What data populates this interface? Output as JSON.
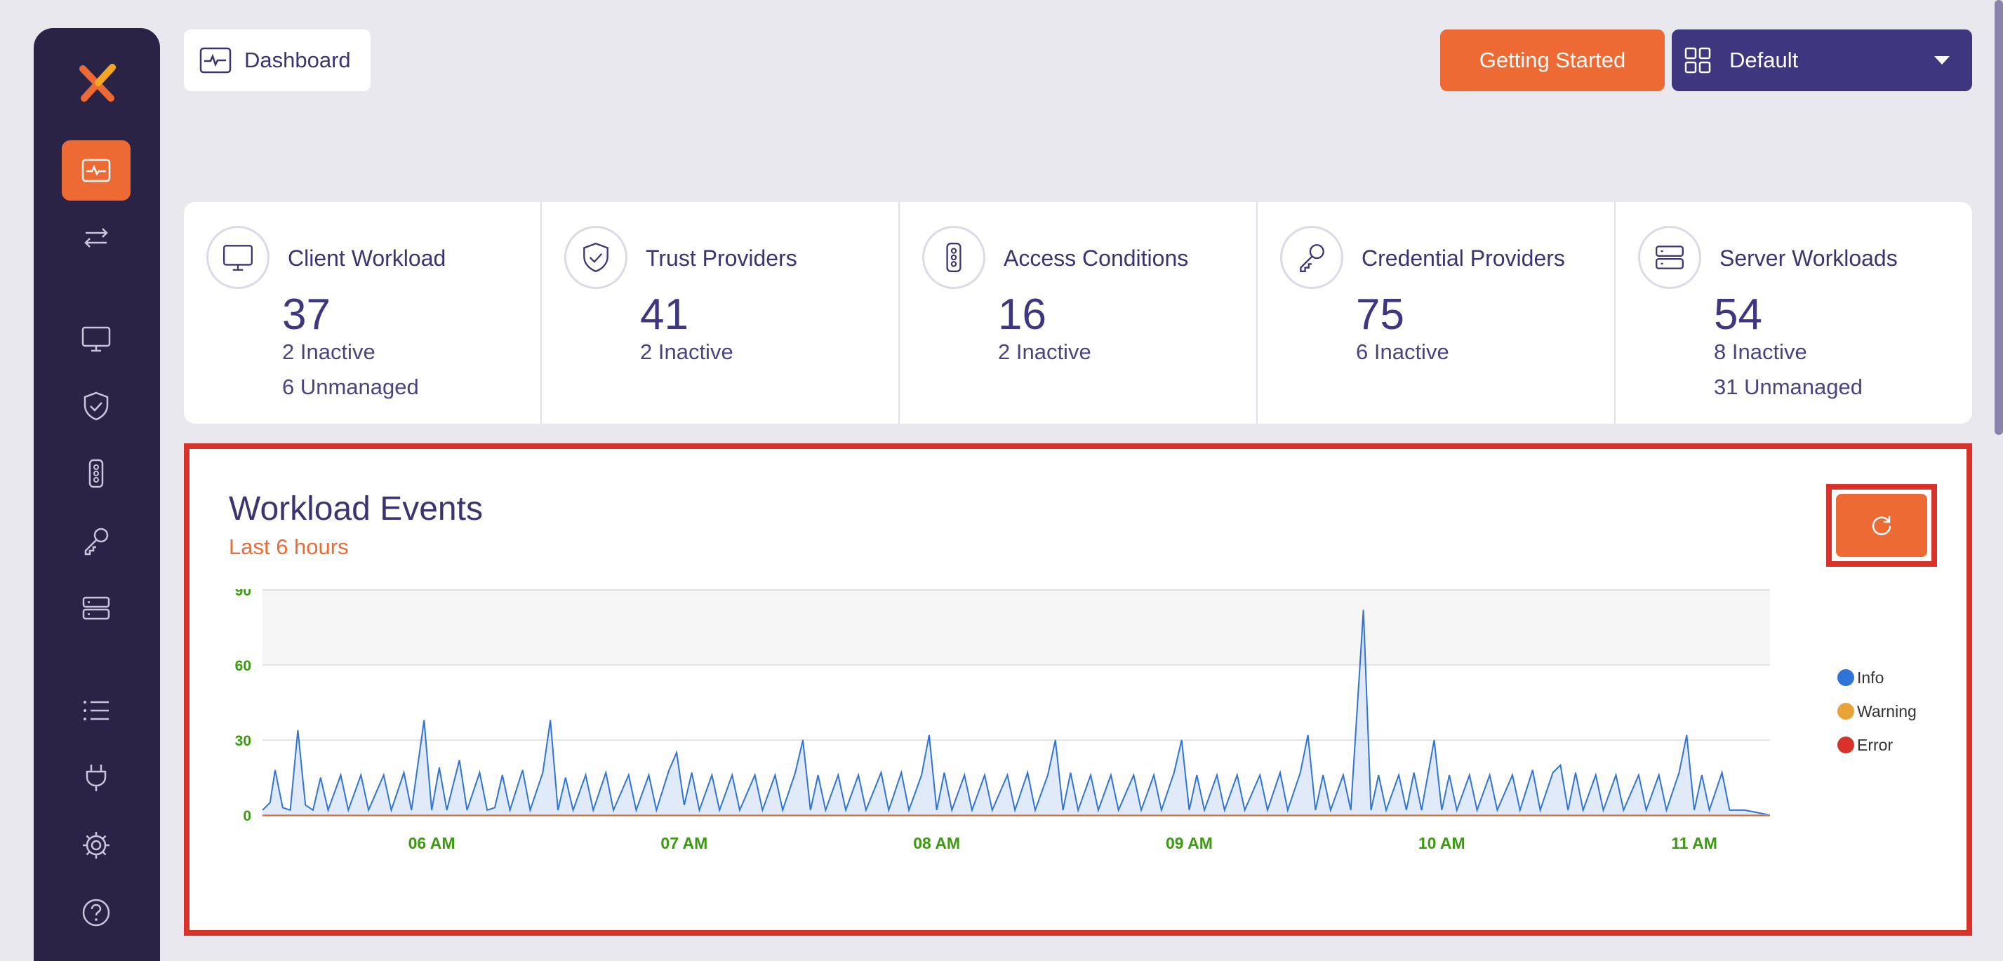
{
  "header": {
    "breadcrumb": "Dashboard",
    "getting_started": "Getting Started",
    "workspace_select": "Default"
  },
  "sidebar": {
    "items": [
      {
        "name": "dashboard",
        "icon": "dashboard-icon",
        "active": true
      },
      {
        "name": "flows",
        "icon": "arrows-icon"
      },
      {
        "name": "client-workloads",
        "icon": "monitor-icon"
      },
      {
        "name": "trust-providers",
        "icon": "shield-icon"
      },
      {
        "name": "access-conditions",
        "icon": "traffic-light-icon"
      },
      {
        "name": "credential-providers",
        "icon": "key-icon"
      },
      {
        "name": "server-workloads",
        "icon": "server-icon"
      },
      {
        "name": "logs",
        "icon": "list-icon"
      },
      {
        "name": "integrations",
        "icon": "plug-icon"
      },
      {
        "name": "settings",
        "icon": "gear-icon"
      },
      {
        "name": "help",
        "icon": "help-icon"
      }
    ]
  },
  "stats": [
    {
      "label": "Client Workload",
      "value": "37",
      "sub1": "2 Inactive",
      "sub2": "6 Unmanaged",
      "icon": "monitor-icon"
    },
    {
      "label": "Trust Providers",
      "value": "41",
      "sub1": "2 Inactive",
      "sub2": "",
      "icon": "shield-icon"
    },
    {
      "label": "Access Conditions",
      "value": "16",
      "sub1": "2 Inactive",
      "sub2": "",
      "icon": "traffic-light-icon"
    },
    {
      "label": "Credential Providers",
      "value": "75",
      "sub1": "6 Inactive",
      "sub2": "",
      "icon": "key-icon"
    },
    {
      "label": "Server Workloads",
      "value": "54",
      "sub1": "8 Inactive",
      "sub2": "31 Unmanaged",
      "icon": "server-icon"
    }
  ],
  "events": {
    "title": "Workload Events",
    "subtitle": "Last 6 hours"
  },
  "colors": {
    "accent": "#ee6a35",
    "sidebar": "#2a2346",
    "primary": "#3f3680",
    "info": "#2f74d6",
    "warning": "#e8a23a",
    "error": "#d8322a",
    "tick": "#3a9a10"
  },
  "chart_data": {
    "type": "area",
    "xlabel": "",
    "ylabel": "",
    "ylim": [
      0,
      90
    ],
    "yticks": [
      "0",
      "30",
      "60",
      "90"
    ],
    "xticks": [
      "06 AM",
      "07 AM",
      "08 AM",
      "09 AM",
      "10 AM",
      "11 AM"
    ],
    "xrange_hours": [
      5.33,
      11.3
    ],
    "legend": [
      "Info",
      "Warning",
      "Error"
    ],
    "legend_position": "right",
    "series": [
      {
        "name": "Info",
        "color": "#2f74d6",
        "points": [
          [
            5.33,
            2
          ],
          [
            5.36,
            5
          ],
          [
            5.38,
            18
          ],
          [
            5.41,
            3
          ],
          [
            5.44,
            2
          ],
          [
            5.47,
            34
          ],
          [
            5.5,
            4
          ],
          [
            5.53,
            2
          ],
          [
            5.56,
            15
          ],
          [
            5.59,
            2
          ],
          [
            5.64,
            16
          ],
          [
            5.67,
            2
          ],
          [
            5.72,
            16
          ],
          [
            5.75,
            2
          ],
          [
            5.81,
            16
          ],
          [
            5.84,
            2
          ],
          [
            5.89,
            17
          ],
          [
            5.92,
            2
          ],
          [
            5.97,
            38
          ],
          [
            6.0,
            2
          ],
          [
            6.03,
            19
          ],
          [
            6.06,
            2
          ],
          [
            6.11,
            22
          ],
          [
            6.14,
            2
          ],
          [
            6.19,
            17
          ],
          [
            6.22,
            2
          ],
          [
            6.25,
            3
          ],
          [
            6.28,
            16
          ],
          [
            6.31,
            2
          ],
          [
            6.36,
            18
          ],
          [
            6.39,
            2
          ],
          [
            6.44,
            17
          ],
          [
            6.47,
            38
          ],
          [
            6.5,
            2
          ],
          [
            6.53,
            15
          ],
          [
            6.56,
            2
          ],
          [
            6.61,
            16
          ],
          [
            6.64,
            2
          ],
          [
            6.69,
            17
          ],
          [
            6.72,
            2
          ],
          [
            6.78,
            16
          ],
          [
            6.81,
            2
          ],
          [
            6.86,
            16
          ],
          [
            6.89,
            2
          ],
          [
            6.94,
            18
          ],
          [
            6.97,
            25
          ],
          [
            7.0,
            4
          ],
          [
            7.03,
            17
          ],
          [
            7.06,
            2
          ],
          [
            7.11,
            16
          ],
          [
            7.14,
            2
          ],
          [
            7.19,
            16
          ],
          [
            7.22,
            2
          ],
          [
            7.28,
            16
          ],
          [
            7.31,
            2
          ],
          [
            7.36,
            16
          ],
          [
            7.39,
            2
          ],
          [
            7.44,
            17
          ],
          [
            7.47,
            30
          ],
          [
            7.5,
            2
          ],
          [
            7.53,
            16
          ],
          [
            7.56,
            2
          ],
          [
            7.61,
            16
          ],
          [
            7.64,
            2
          ],
          [
            7.69,
            16
          ],
          [
            7.72,
            2
          ],
          [
            7.78,
            17
          ],
          [
            7.81,
            2
          ],
          [
            7.86,
            17
          ],
          [
            7.89,
            2
          ],
          [
            7.94,
            16
          ],
          [
            7.97,
            32
          ],
          [
            8.0,
            2
          ],
          [
            8.03,
            17
          ],
          [
            8.06,
            2
          ],
          [
            8.11,
            16
          ],
          [
            8.14,
            2
          ],
          [
            8.19,
            16
          ],
          [
            8.22,
            2
          ],
          [
            8.28,
            16
          ],
          [
            8.31,
            2
          ],
          [
            8.36,
            17
          ],
          [
            8.39,
            2
          ],
          [
            8.44,
            16
          ],
          [
            8.47,
            30
          ],
          [
            8.5,
            2
          ],
          [
            8.53,
            17
          ],
          [
            8.56,
            2
          ],
          [
            8.61,
            16
          ],
          [
            8.64,
            2
          ],
          [
            8.69,
            16
          ],
          [
            8.72,
            2
          ],
          [
            8.78,
            16
          ],
          [
            8.81,
            2
          ],
          [
            8.86,
            16
          ],
          [
            8.89,
            2
          ],
          [
            8.94,
            17
          ],
          [
            8.97,
            30
          ],
          [
            9.0,
            2
          ],
          [
            9.03,
            16
          ],
          [
            9.06,
            2
          ],
          [
            9.11,
            16
          ],
          [
            9.14,
            2
          ],
          [
            9.19,
            16
          ],
          [
            9.22,
            2
          ],
          [
            9.28,
            16
          ],
          [
            9.31,
            2
          ],
          [
            9.36,
            17
          ],
          [
            9.39,
            2
          ],
          [
            9.44,
            17
          ],
          [
            9.47,
            32
          ],
          [
            9.5,
            2
          ],
          [
            9.53,
            16
          ],
          [
            9.56,
            2
          ],
          [
            9.61,
            16
          ],
          [
            9.64,
            2
          ],
          [
            9.69,
            82
          ],
          [
            9.72,
            2
          ],
          [
            9.75,
            16
          ],
          [
            9.78,
            2
          ],
          [
            9.83,
            16
          ],
          [
            9.86,
            2
          ],
          [
            9.89,
            17
          ],
          [
            9.92,
            2
          ],
          [
            9.97,
            30
          ],
          [
            10.0,
            2
          ],
          [
            10.03,
            16
          ],
          [
            10.06,
            2
          ],
          [
            10.11,
            16
          ],
          [
            10.14,
            2
          ],
          [
            10.19,
            16
          ],
          [
            10.22,
            2
          ],
          [
            10.28,
            16
          ],
          [
            10.31,
            2
          ],
          [
            10.36,
            18
          ],
          [
            10.39,
            2
          ],
          [
            10.44,
            17
          ],
          [
            10.47,
            20
          ],
          [
            10.5,
            2
          ],
          [
            10.53,
            17
          ],
          [
            10.56,
            2
          ],
          [
            10.61,
            16
          ],
          [
            10.64,
            2
          ],
          [
            10.69,
            16
          ],
          [
            10.72,
            2
          ],
          [
            10.78,
            16
          ],
          [
            10.81,
            2
          ],
          [
            10.86,
            16
          ],
          [
            10.89,
            2
          ],
          [
            10.94,
            17
          ],
          [
            10.97,
            32
          ],
          [
            11.0,
            2
          ],
          [
            11.03,
            16
          ],
          [
            11.06,
            2
          ],
          [
            11.11,
            17
          ],
          [
            11.14,
            2
          ],
          [
            11.2,
            2
          ],
          [
            11.3,
            0
          ]
        ]
      },
      {
        "name": "Warning",
        "color": "#e8a23a",
        "points": [
          [
            5.33,
            0
          ],
          [
            11.3,
            0
          ]
        ]
      },
      {
        "name": "Error",
        "color": "#d8322a",
        "points": [
          [
            5.33,
            0
          ],
          [
            11.3,
            0
          ]
        ]
      }
    ]
  }
}
